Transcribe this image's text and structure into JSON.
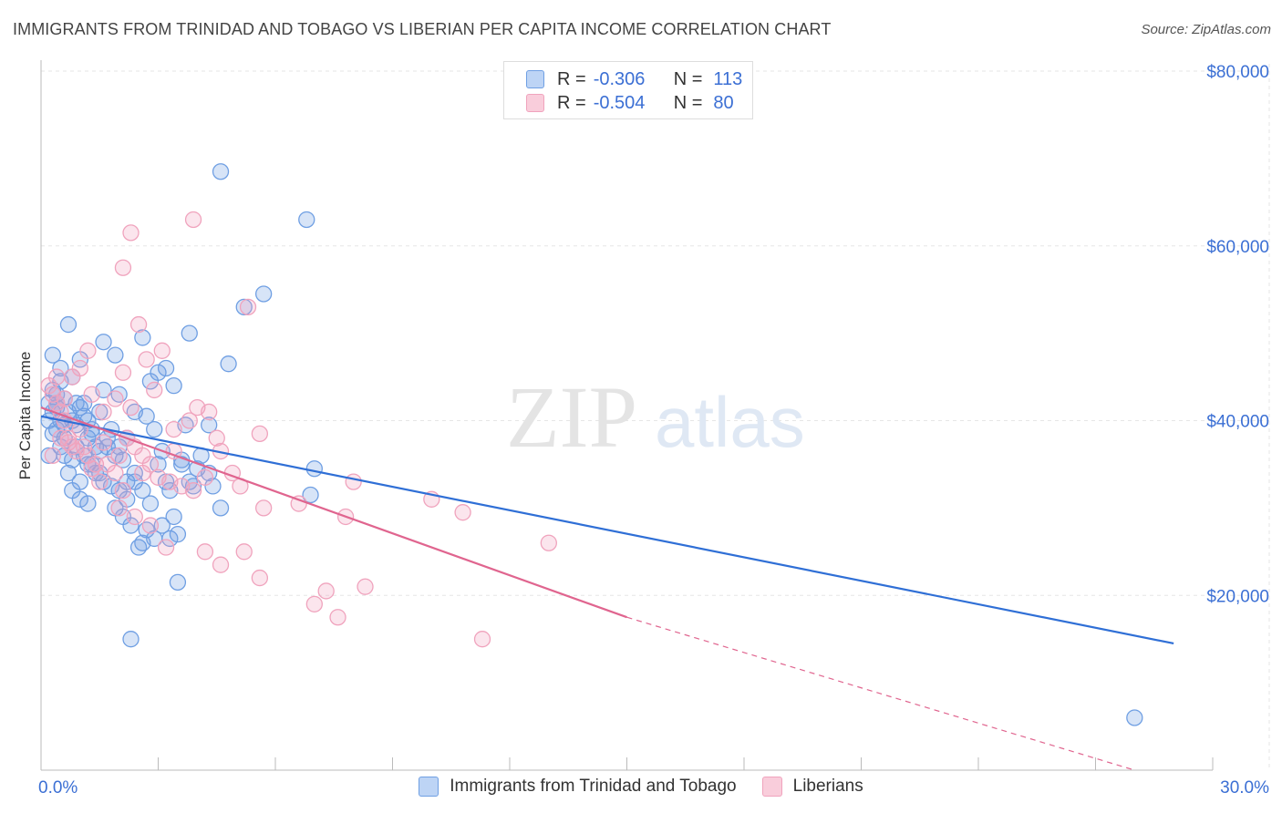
{
  "header": {
    "title": "IMMIGRANTS FROM TRINIDAD AND TOBAGO VS LIBERIAN PER CAPITA INCOME CORRELATION CHART",
    "source": "Source: ZipAtlas.com"
  },
  "watermark": {
    "zip": "ZIP",
    "atlas": "atlas"
  },
  "legend": {
    "rows": [
      {
        "r_label": "R =",
        "r_value": "-0.306",
        "n_label": "N =",
        "n_value": "113",
        "color": "#9bbff0"
      },
      {
        "r_label": "R =",
        "r_value": "-0.504",
        "n_label": "N =",
        "n_value": "80",
        "color": "#f4b8cc"
      }
    ]
  },
  "chart_data": {
    "type": "scatter",
    "title": "IMMIGRANTS FROM TRINIDAD AND TOBAGO VS LIBERIAN PER CAPITA INCOME CORRELATION CHART",
    "xlabel": "",
    "ylabel": "Per Capita Income",
    "xlim": [
      0,
      30
    ],
    "ylim": [
      0,
      80000
    ],
    "x_tick_labels": [
      "0.0%",
      "30.0%"
    ],
    "y_ticks": [
      20000,
      40000,
      60000,
      80000
    ],
    "y_tick_labels": [
      "$20,000",
      "$40,000",
      "$60,000",
      "$80,000"
    ],
    "grid": true,
    "legend_position": "top-center",
    "series": [
      {
        "name": "Immigrants from Trinidad and Tobago",
        "color": "#6f9fe3",
        "line_color": "#2f6fd6",
        "trend": {
          "x": [
            0,
            29
          ],
          "y": [
            40500,
            14500
          ],
          "dashed_after": null
        },
        "points": [
          [
            0.2,
            42
          ],
          [
            0.3,
            41
          ],
          [
            0.4,
            43
          ],
          [
            0.5,
            40
          ],
          [
            0.6,
            42.5
          ],
          [
            0.4,
            39
          ],
          [
            0.7,
            41
          ],
          [
            0.8,
            40
          ],
          [
            0.9,
            39.5
          ],
          [
            1.0,
            41.5
          ],
          [
            0.3,
            47.5
          ],
          [
            0.5,
            46
          ],
          [
            0.7,
            51
          ],
          [
            0.8,
            45
          ],
          [
            1.0,
            47
          ],
          [
            1.1,
            42
          ],
          [
            1.2,
            40
          ],
          [
            1.3,
            39
          ],
          [
            1.5,
            41
          ],
          [
            1.6,
            43.5
          ],
          [
            0.6,
            38
          ],
          [
            0.9,
            37
          ],
          [
            1.1,
            36
          ],
          [
            1.3,
            35
          ],
          [
            1.5,
            34
          ],
          [
            1.7,
            38
          ],
          [
            1.8,
            39
          ],
          [
            2.0,
            37
          ],
          [
            2.1,
            35.5
          ],
          [
            2.2,
            33
          ],
          [
            0.8,
            32
          ],
          [
            1.0,
            31
          ],
          [
            1.2,
            30.5
          ],
          [
            1.4,
            34
          ],
          [
            1.6,
            33
          ],
          [
            1.8,
            32.5
          ],
          [
            2.0,
            32
          ],
          [
            2.2,
            31
          ],
          [
            2.4,
            33
          ],
          [
            2.6,
            32
          ],
          [
            1.6,
            49
          ],
          [
            1.9,
            47.5
          ],
          [
            2.0,
            43
          ],
          [
            2.4,
            41
          ],
          [
            2.6,
            49.5
          ],
          [
            2.8,
            44.5
          ],
          [
            3.0,
            45.5
          ],
          [
            3.2,
            46
          ],
          [
            2.7,
            40.5
          ],
          [
            2.9,
            39
          ],
          [
            3.4,
            44
          ],
          [
            3.8,
            50
          ],
          [
            3.7,
            39.5
          ],
          [
            4.3,
            39.5
          ],
          [
            4.8,
            46.5
          ],
          [
            4.6,
            68.5
          ],
          [
            5.7,
            54.5
          ],
          [
            6.8,
            63
          ],
          [
            5.2,
            53
          ],
          [
            7.0,
            34.5
          ],
          [
            2.3,
            28
          ],
          [
            2.6,
            26
          ],
          [
            2.5,
            25.5
          ],
          [
            2.9,
            26.5
          ],
          [
            3.1,
            28
          ],
          [
            3.3,
            26.5
          ],
          [
            3.5,
            27
          ],
          [
            3.2,
            33
          ],
          [
            3.6,
            35
          ],
          [
            3.8,
            33
          ],
          [
            4.0,
            34.5
          ],
          [
            4.3,
            34
          ],
          [
            3.9,
            32.5
          ],
          [
            4.6,
            30
          ],
          [
            6.9,
            31.5
          ],
          [
            3.5,
            21.5
          ],
          [
            2.3,
            15
          ],
          [
            3.0,
            35
          ],
          [
            3.3,
            32
          ],
          [
            2.8,
            30.5
          ],
          [
            0.3,
            38.5
          ],
          [
            0.5,
            37
          ],
          [
            0.6,
            36
          ],
          [
            0.8,
            35.5
          ],
          [
            1.2,
            38
          ],
          [
            1.4,
            37
          ],
          [
            1.7,
            37
          ],
          [
            0.2,
            40
          ],
          [
            0.4,
            41.5
          ],
          [
            0.6,
            39.5
          ],
          [
            0.9,
            42
          ],
          [
            1.1,
            40.5
          ],
          [
            1.3,
            38.5
          ],
          [
            1.9,
            36
          ],
          [
            2.2,
            38
          ],
          [
            3.1,
            36.5
          ],
          [
            3.6,
            35.5
          ],
          [
            4.1,
            36
          ],
          [
            2.4,
            34
          ],
          [
            1.5,
            36.5
          ],
          [
            0.3,
            43.5
          ],
          [
            0.5,
            44.5
          ],
          [
            0.2,
            36
          ],
          [
            0.7,
            34
          ],
          [
            1.0,
            33
          ],
          [
            1.9,
            30
          ],
          [
            2.1,
            29
          ],
          [
            2.7,
            27.5
          ],
          [
            3.4,
            29
          ],
          [
            4.4,
            32.5
          ],
          [
            28.0,
            6
          ],
          [
            0.4,
            42
          ],
          [
            1.2,
            35
          ]
        ]
      },
      {
        "name": "Liberians",
        "color": "#f0a3bd",
        "line_color": "#e0658f",
        "trend": {
          "x": [
            0,
            15
          ],
          "y": [
            41500,
            17500
          ],
          "dashed_to": [
            28,
            0
          ]
        },
        "points": [
          [
            0.2,
            44
          ],
          [
            0.3,
            43
          ],
          [
            0.4,
            42
          ],
          [
            0.5,
            41
          ],
          [
            0.6,
            40
          ],
          [
            0.7,
            38
          ],
          [
            0.8,
            37
          ],
          [
            1.0,
            39
          ],
          [
            1.2,
            36
          ],
          [
            1.4,
            35
          ],
          [
            0.3,
            36
          ],
          [
            0.5,
            38
          ],
          [
            0.7,
            37.5
          ],
          [
            0.9,
            36.5
          ],
          [
            1.1,
            37
          ],
          [
            1.3,
            34.5
          ],
          [
            1.5,
            33
          ],
          [
            1.7,
            35
          ],
          [
            1.9,
            34
          ],
          [
            2.1,
            32
          ],
          [
            1.0,
            46
          ],
          [
            1.3,
            43
          ],
          [
            1.6,
            41
          ],
          [
            1.9,
            42.5
          ],
          [
            2.1,
            45.5
          ],
          [
            2.3,
            41.5
          ],
          [
            2.5,
            51
          ],
          [
            2.7,
            47
          ],
          [
            2.9,
            43.5
          ],
          [
            3.1,
            48
          ],
          [
            2.3,
            61.5
          ],
          [
            2.1,
            57.5
          ],
          [
            3.9,
            63
          ],
          [
            5.3,
            53
          ],
          [
            4.0,
            41.5
          ],
          [
            4.3,
            41
          ],
          [
            4.5,
            38
          ],
          [
            5.6,
            38.5
          ],
          [
            3.8,
            40
          ],
          [
            3.4,
            39
          ],
          [
            2.2,
            38
          ],
          [
            2.4,
            37
          ],
          [
            2.6,
            36
          ],
          [
            2.8,
            35
          ],
          [
            3.0,
            33.5
          ],
          [
            3.3,
            33
          ],
          [
            3.6,
            32.5
          ],
          [
            3.9,
            32
          ],
          [
            4.2,
            33.5
          ],
          [
            4.6,
            36.5
          ],
          [
            2.0,
            30
          ],
          [
            2.4,
            29
          ],
          [
            2.8,
            28
          ],
          [
            3.2,
            25.5
          ],
          [
            4.2,
            25
          ],
          [
            4.6,
            23.5
          ],
          [
            5.2,
            25
          ],
          [
            5.6,
            22
          ],
          [
            5.7,
            30
          ],
          [
            6.6,
            30.5
          ],
          [
            8.0,
            33
          ],
          [
            7.8,
            29
          ],
          [
            7.3,
            20.5
          ],
          [
            7.6,
            17.5
          ],
          [
            8.3,
            21
          ],
          [
            7.0,
            19
          ],
          [
            10.0,
            31
          ],
          [
            10.8,
            29.5
          ],
          [
            13.0,
            26
          ],
          [
            11.3,
            15
          ],
          [
            1.2,
            48
          ],
          [
            0.8,
            45
          ],
          [
            0.4,
            45
          ],
          [
            0.6,
            42.5
          ],
          [
            2.0,
            36
          ],
          [
            2.6,
            34
          ],
          [
            3.4,
            36.5
          ],
          [
            4.9,
            34
          ],
          [
            1.6,
            37.5
          ],
          [
            5.1,
            32.5
          ]
        ]
      }
    ]
  },
  "bottom_legend": {
    "items": [
      {
        "label": "Immigrants from Trinidad and Tobago",
        "color": "#9bbff0"
      },
      {
        "label": "Liberians",
        "color": "#f4b8cc"
      }
    ]
  }
}
